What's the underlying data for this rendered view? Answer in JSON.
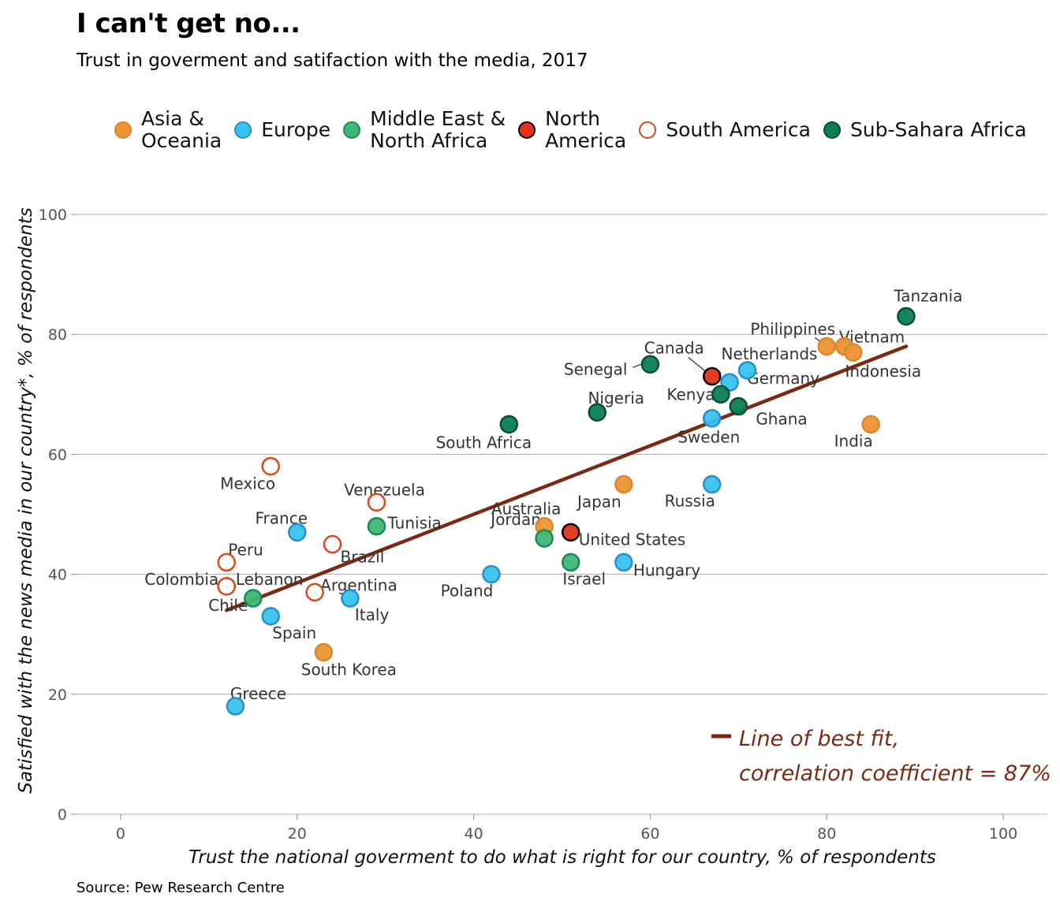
{
  "title": "I can't get no...",
  "subtitle": "Trust in goverment and satifaction with the media, 2017",
  "source": "Source: Pew Research Centre",
  "colors": {
    "Asia & Oceania": "#ec9535",
    "Europe": "#38c3ee",
    "Middle East & North Africa": "#3eb777",
    "North America": "#e4321b",
    "South America": "#ffffff",
    "Sub-Sahara Africa": "#0b8055",
    "fit_line": "#7a2a12",
    "grid": "#aaaaaa"
  },
  "legend": [
    {
      "region": "Asia & Oceania",
      "label": "Asia &\nOceania",
      "fill": "#ec9535",
      "stroke": "#d9862c"
    },
    {
      "region": "Europe",
      "label": "Europe",
      "fill": "#38c3ee",
      "stroke": "#2a8fc7"
    },
    {
      "region": "Middle East & North Africa",
      "label": "Middle East &\nNorth Africa",
      "fill": "#3eb777",
      "stroke": "#1f8a50"
    },
    {
      "region": "North America",
      "label": "North\nAmerica",
      "fill": "#e4321b",
      "stroke": "#000000"
    },
    {
      "region": "South America",
      "label": "South America",
      "fill": "#ffffff",
      "stroke": "#d64a1e"
    },
    {
      "region": "Sub-Sahara Africa",
      "label": "Sub-Sahara Africa",
      "fill": "#0b8055",
      "stroke": "#064d33"
    }
  ],
  "chart_data": {
    "type": "scatter",
    "xlabel": "Trust the national goverment to do what is right for our country, % of respondents",
    "ylabel": "Satisfied with the news media in our country*, % of respondents",
    "xlim": [
      -5,
      105
    ],
    "ylim": [
      0,
      100
    ],
    "xticks": [
      0,
      20,
      40,
      60,
      80,
      100
    ],
    "yticks": [
      0,
      20,
      40,
      60,
      80,
      100
    ],
    "grid": "horizontal",
    "legend_position": "top",
    "fit_line": {
      "from": [
        12,
        34
      ],
      "to": [
        89,
        78
      ],
      "label_line1": "Line of best fit,",
      "label_line2": "correlation coefficient = 87%"
    },
    "points": [
      {
        "country": "Tanzania",
        "region": "Sub-Sahara Africa",
        "x": 89,
        "y": 83
      },
      {
        "country": "Philippines",
        "region": "Asia & Oceania",
        "x": 80,
        "y": 78
      },
      {
        "country": "Vietnam",
        "region": "Asia & Oceania",
        "x": 82,
        "y": 78
      },
      {
        "country": "Indonesia",
        "region": "Asia & Oceania",
        "x": 83,
        "y": 77
      },
      {
        "country": "India",
        "region": "Asia & Oceania",
        "x": 85,
        "y": 65
      },
      {
        "country": "Canada",
        "region": "North America",
        "x": 67,
        "y": 73
      },
      {
        "country": "Netherlands",
        "region": "Europe",
        "x": 71,
        "y": 74
      },
      {
        "country": "Germany",
        "region": "Europe",
        "x": 69,
        "y": 72
      },
      {
        "country": "Senegal",
        "region": "Sub-Sahara Africa",
        "x": 60,
        "y": 75
      },
      {
        "country": "Kenya",
        "region": "Sub-Sahara Africa",
        "x": 68,
        "y": 70
      },
      {
        "country": "Ghana",
        "region": "Sub-Sahara Africa",
        "x": 70,
        "y": 68
      },
      {
        "country": "Sweden",
        "region": "Europe",
        "x": 67,
        "y": 66
      },
      {
        "country": "Nigeria",
        "region": "Sub-Sahara Africa",
        "x": 54,
        "y": 67
      },
      {
        "country": "South Africa",
        "region": "Sub-Sahara Africa",
        "x": 44,
        "y": 65
      },
      {
        "country": "Mexico",
        "region": "South America",
        "x": 17,
        "y": 58
      },
      {
        "country": "Venezuela",
        "region": "South America",
        "x": 29,
        "y": 52
      },
      {
        "country": "Japan",
        "region": "Asia & Oceania",
        "x": 57,
        "y": 55
      },
      {
        "country": "Russia",
        "region": "Europe",
        "x": 67,
        "y": 55
      },
      {
        "country": "France",
        "region": "Europe",
        "x": 20,
        "y": 47
      },
      {
        "country": "Tunisia",
        "region": "Middle East & North Africa",
        "x": 29,
        "y": 48
      },
      {
        "country": "Australia",
        "region": "Asia & Oceania",
        "x": 48,
        "y": 48
      },
      {
        "country": "United States",
        "region": "North America",
        "x": 51,
        "y": 47
      },
      {
        "country": "Brazil",
        "region": "South America",
        "x": 24,
        "y": 45
      },
      {
        "country": "Peru",
        "region": "South America",
        "x": 12,
        "y": 42
      },
      {
        "country": "Jordan",
        "region": "Middle East & North Africa",
        "x": 48,
        "y": 46
      },
      {
        "country": "Israel",
        "region": "Middle East & North Africa",
        "x": 51,
        "y": 42
      },
      {
        "country": "Hungary",
        "region": "Europe",
        "x": 57,
        "y": 42
      },
      {
        "country": "Poland",
        "region": "Europe",
        "x": 42,
        "y": 40
      },
      {
        "country": "Colombia",
        "region": "South America",
        "x": 12,
        "y": 38
      },
      {
        "country": "Lebanon",
        "region": "Middle East & North Africa",
        "x": 15,
        "y": 36
      },
      {
        "country": "Argentina",
        "region": "South America",
        "x": 22,
        "y": 37
      },
      {
        "country": "Italy",
        "region": "Europe",
        "x": 26,
        "y": 36
      },
      {
        "country": "Chile",
        "region": "South America",
        "x": 12,
        "y": 38
      },
      {
        "country": "Spain",
        "region": "Europe",
        "x": 17,
        "y": 33
      },
      {
        "country": "South Korea",
        "region": "Asia & Oceania",
        "x": 23,
        "y": 27
      },
      {
        "country": "Greece",
        "region": "Europe",
        "x": 13,
        "y": 18
      }
    ]
  }
}
